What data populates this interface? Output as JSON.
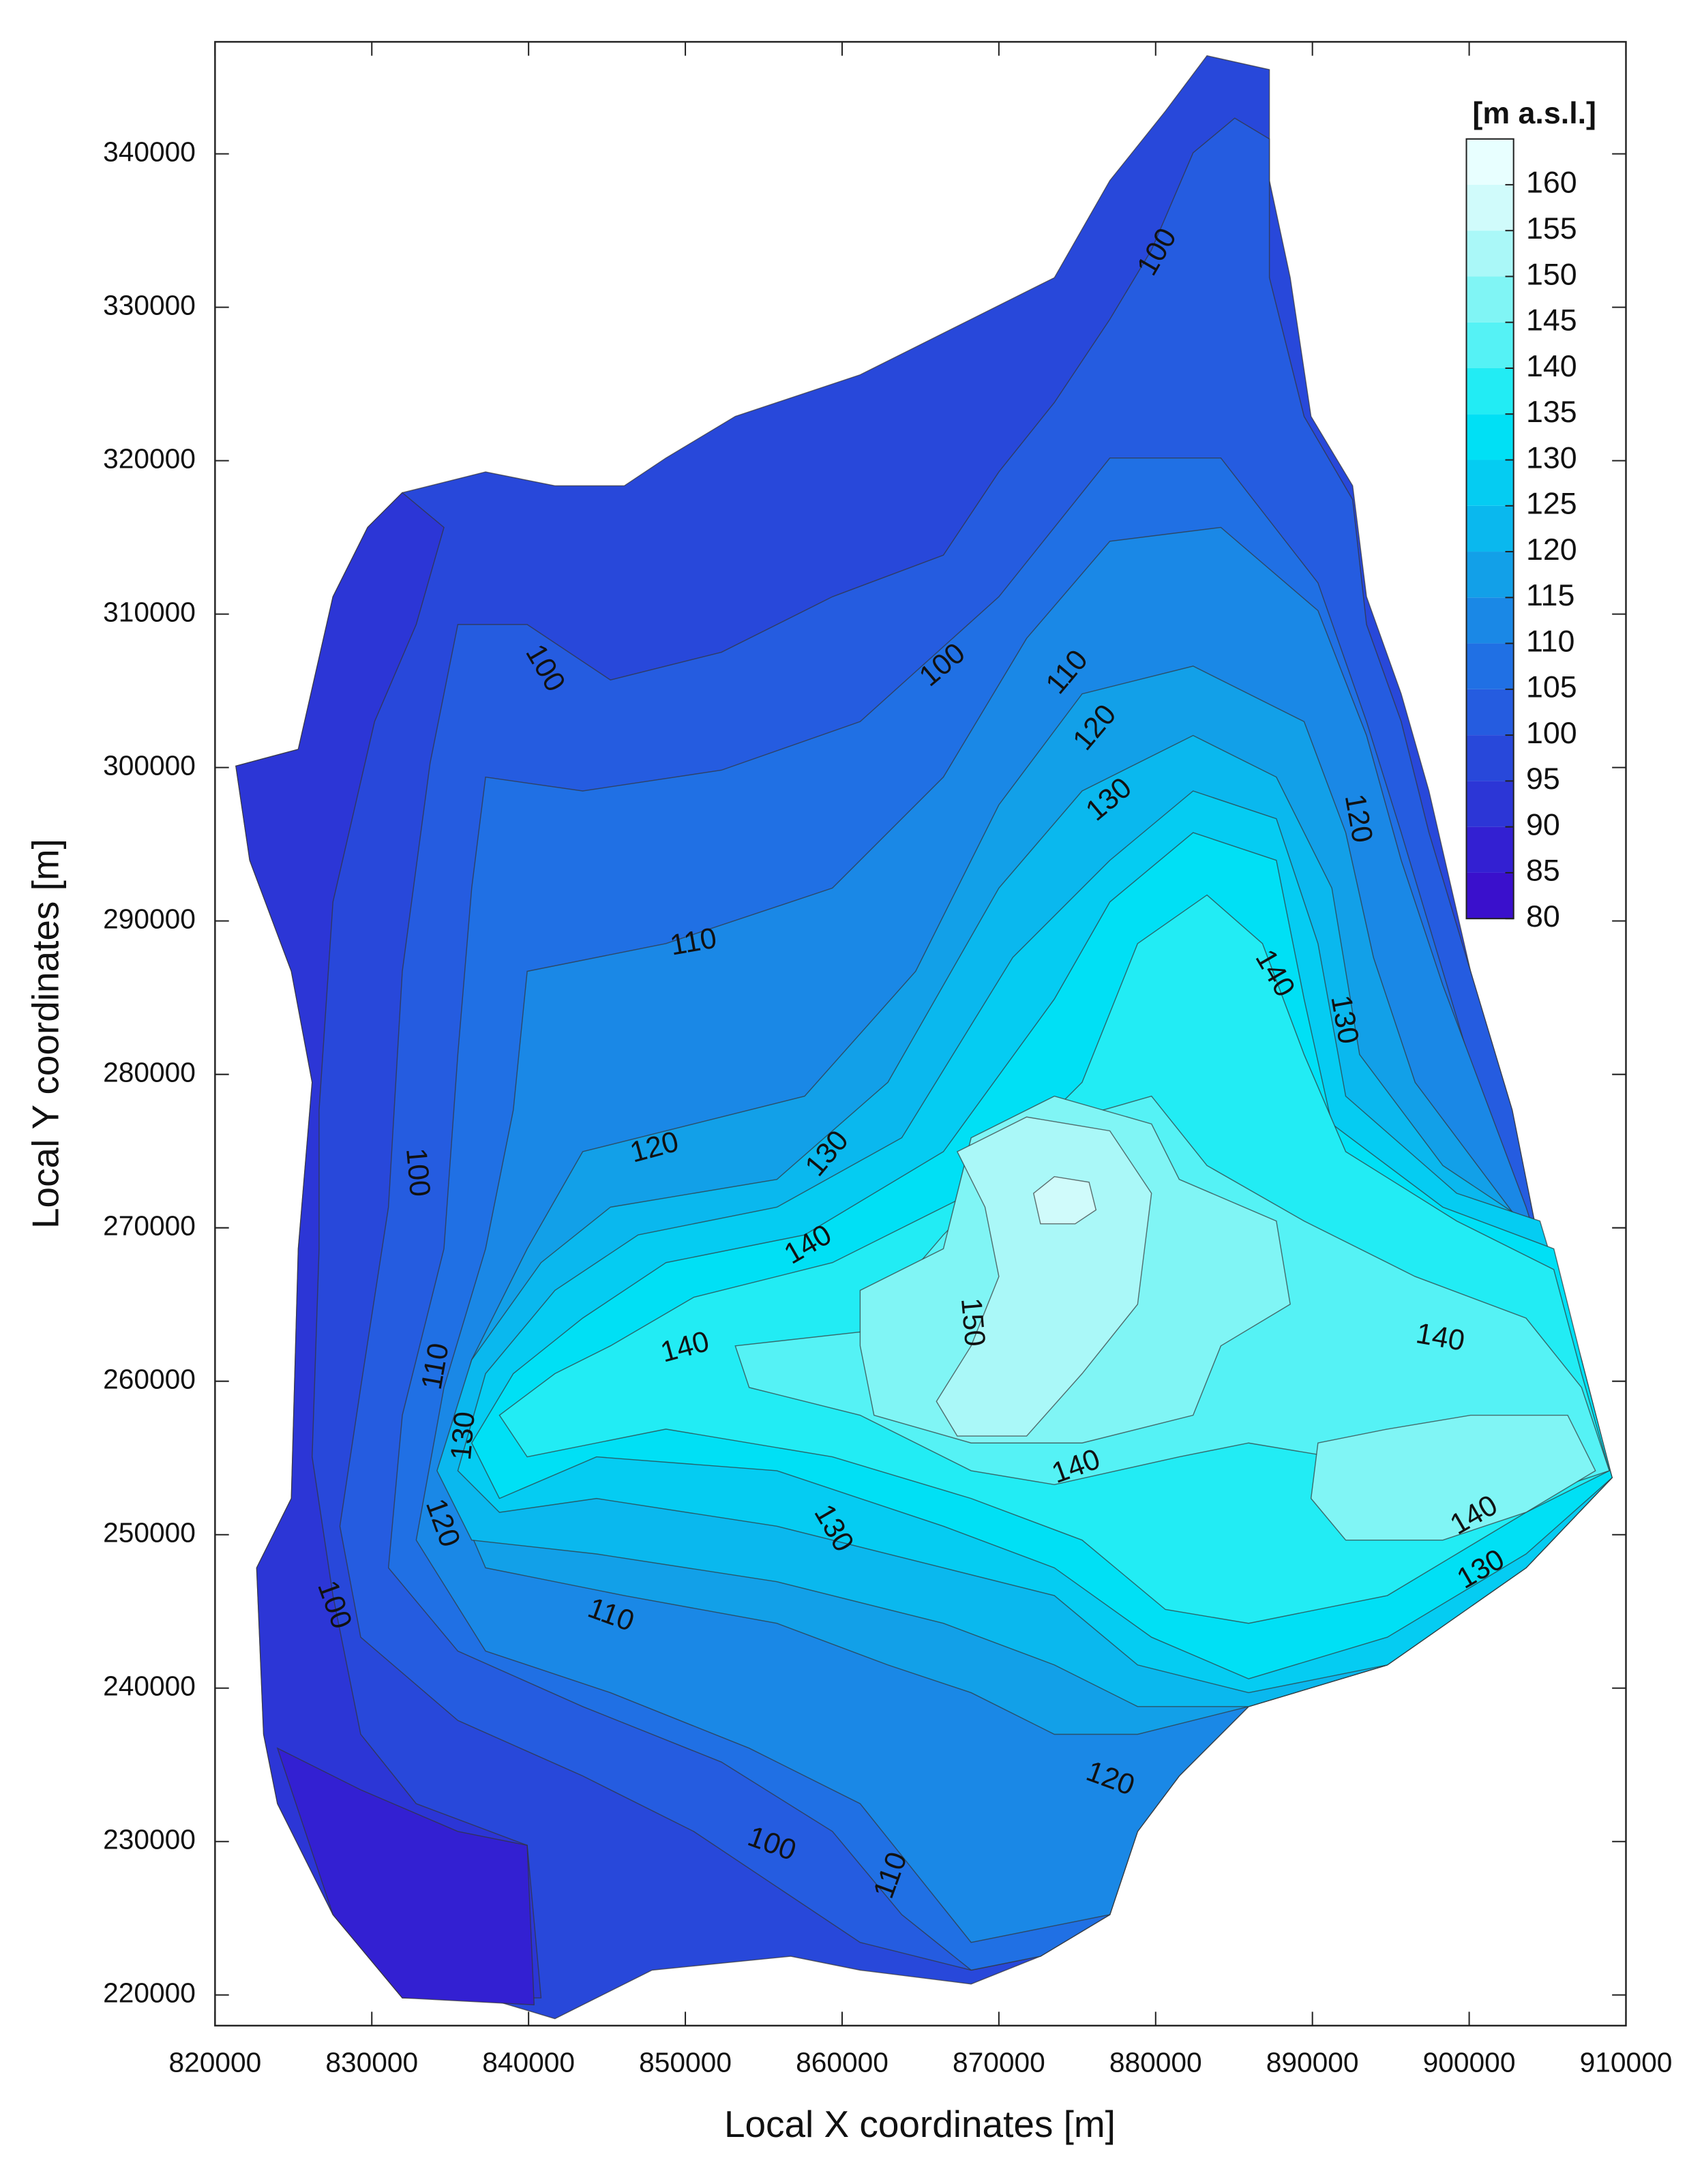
{
  "chart_data": {
    "type": "contour",
    "x_label": "Local X coordinates [m]",
    "y_label": "Local Y coordinates [m]",
    "xlim": [
      820000,
      910000
    ],
    "ylim": [
      218000,
      347300
    ],
    "xticks": [
      820000,
      830000,
      840000,
      850000,
      860000,
      870000,
      880000,
      890000,
      900000,
      910000
    ],
    "yticks": [
      220000,
      230000,
      240000,
      250000,
      260000,
      270000,
      280000,
      290000,
      300000,
      310000,
      320000,
      330000,
      340000
    ],
    "colorbar": {
      "title": "[m a.s.l.]",
      "levels": [
        80,
        85,
        90,
        95,
        100,
        105,
        110,
        115,
        120,
        125,
        130,
        135,
        140,
        145,
        150,
        155,
        160
      ],
      "colors": [
        "#3a10cc",
        "#3320d2",
        "#2c36d6",
        "#2848da",
        "#255ce0",
        "#2070e4",
        "#1a88e6",
        "#12a0e8",
        "#0ab8ee",
        "#05ccf2",
        "#00e0f5",
        "#22ecf4",
        "#55f2f5",
        "#80f5f5",
        "#aaf8f8",
        "#d0fbfb",
        "#e8ffff"
      ]
    },
    "contour_labels": [
      100,
      100,
      100,
      110,
      120,
      130,
      120,
      140,
      130,
      110,
      100,
      120,
      130,
      140,
      150,
      140,
      140,
      110,
      130,
      140,
      120,
      130,
      140,
      100,
      110,
      130,
      120,
      100,
      110
    ]
  }
}
